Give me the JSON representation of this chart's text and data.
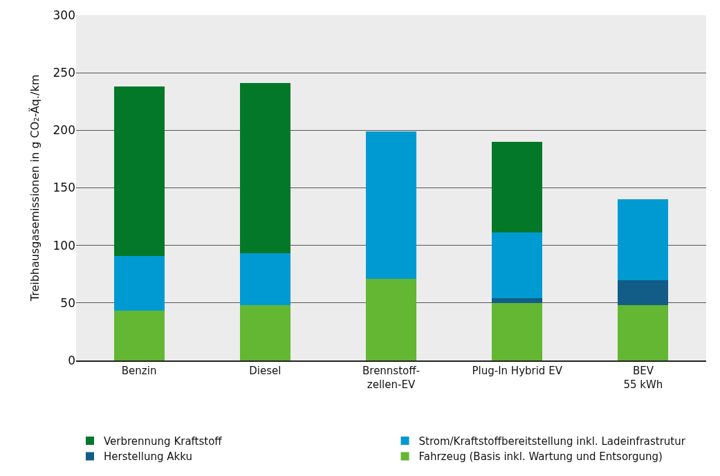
{
  "chart_data": {
    "type": "bar",
    "stacked": true,
    "ylabel": "Treibhausgasemissionen in g CO₂-Äq./km",
    "categories": [
      "Benzin",
      "Diesel",
      "Brennstoff-\nzellen-EV",
      "Plug-In Hybrid EV",
      "BEV\n55 kWh"
    ],
    "series": [
      {
        "name": "Fahrzeug (Basis inkl. Wartung und Entsorgung)",
        "color": "#63b733",
        "values": [
          43,
          48,
          71,
          50,
          48
        ]
      },
      {
        "name": "Herstellung Akku",
        "color": "#125d88",
        "values": [
          null,
          null,
          null,
          4,
          22
        ]
      },
      {
        "name": "Strom/Kraftstoffbereitstellung inkl. Ladeinfrastrutur",
        "color": "#009ad3",
        "values": [
          48,
          45,
          128,
          57,
          70
        ]
      },
      {
        "name": "Verbrennung Kraftstoff",
        "color": "#047829",
        "values": [
          147,
          148,
          null,
          79,
          null
        ]
      }
    ],
    "ylim": [
      0,
      300
    ],
    "yticks": [
      0,
      50,
      100,
      150,
      200,
      250,
      300
    ],
    "grid": "y",
    "legend": "bottom"
  }
}
